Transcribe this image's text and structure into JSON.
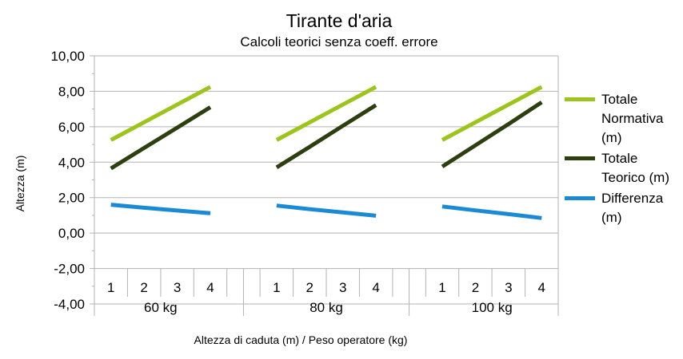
{
  "chart_data": {
    "type": "line",
    "title": "Tirante d'aria",
    "subtitle": "Calcoli teorici senza coeff. errore",
    "xlabel": "Altezza di caduta (m) / Peso operatore (kg)",
    "ylabel": "Altezza (m)",
    "ylim": [
      -4,
      10
    ],
    "yticks": [
      "10,00",
      "8,00",
      "6,00",
      "4,00",
      "2,00",
      "0,00",
      "-2,00",
      "-4,00"
    ],
    "groups": [
      {
        "label": "60 kg",
        "categories": [
          "1",
          "2",
          "3",
          "4"
        ]
      },
      {
        "label": "80 kg",
        "categories": [
          "1",
          "2",
          "3",
          "4"
        ]
      },
      {
        "label": "100 kg",
        "categories": [
          "1",
          "2",
          "3",
          "4"
        ]
      }
    ],
    "series": [
      {
        "name": "Totale Normativa (m)",
        "color": "#9dc41a",
        "groups": [
          [
            5.25,
            6.25,
            7.25,
            8.25
          ],
          [
            5.25,
            6.25,
            7.25,
            8.25
          ],
          [
            5.25,
            6.25,
            7.25,
            8.25
          ]
        ]
      },
      {
        "name": "Totale Teorico (m)",
        "color": "#2d3e0f",
        "groups": [
          [
            3.65,
            4.8,
            5.95,
            7.1
          ],
          [
            3.7,
            4.87,
            6.05,
            7.22
          ],
          [
            3.75,
            4.95,
            6.15,
            7.38
          ]
        ]
      },
      {
        "name": "Differenza (m)",
        "color": "#1a8ad4",
        "groups": [
          [
            1.6,
            1.43,
            1.27,
            1.12
          ],
          [
            1.55,
            1.35,
            1.17,
            0.98
          ],
          [
            1.5,
            1.28,
            1.07,
            0.85
          ]
        ]
      }
    ],
    "legend_position": "right",
    "grid": true
  },
  "legend": [
    {
      "label": "Totale Normativa (m)",
      "color": "#9dc41a"
    },
    {
      "label": "Totale Teorico (m)",
      "color": "#2d3e0f"
    },
    {
      "label": "Differenza (m)",
      "color": "#1a8ad4"
    }
  ]
}
